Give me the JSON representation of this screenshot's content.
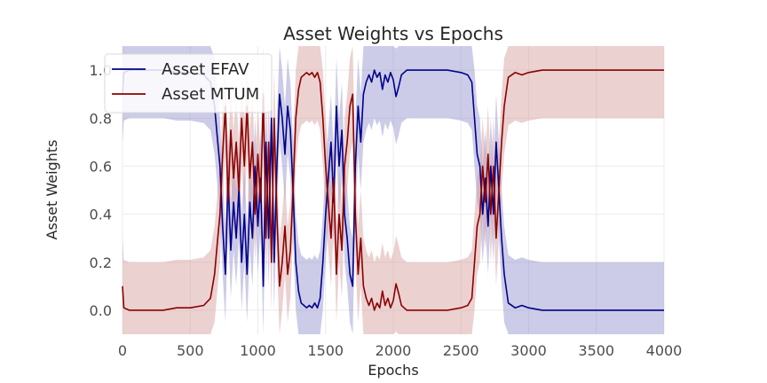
{
  "chart_data": {
    "type": "line",
    "title": "Asset Weights vs Epochs",
    "xlabel": "Epochs",
    "ylabel": "Asset Weights",
    "xlim": [
      0,
      4000
    ],
    "ylim": [
      -0.1,
      1.1
    ],
    "xticks": [
      0,
      500,
      1000,
      1500,
      2000,
      2500,
      3000,
      3500,
      4000
    ],
    "yticks": [
      0.0,
      0.2,
      0.4,
      0.6,
      0.8,
      1.0
    ],
    "grid": true,
    "legend": "top-left",
    "band_halfwidth": 0.2,
    "series": [
      {
        "name": "Asset EFAV",
        "color": "#00008b",
        "band_color": "#8e8ecc",
        "x": [
          0,
          10,
          50,
          100,
          200,
          300,
          400,
          500,
          600,
          650,
          680,
          700,
          720,
          740,
          760,
          780,
          800,
          820,
          840,
          860,
          880,
          900,
          920,
          940,
          960,
          980,
          1000,
          1020,
          1040,
          1060,
          1080,
          1100,
          1120,
          1140,
          1160,
          1180,
          1200,
          1220,
          1240,
          1260,
          1280,
          1300,
          1320,
          1340,
          1360,
          1380,
          1400,
          1420,
          1440,
          1460,
          1480,
          1500,
          1520,
          1540,
          1560,
          1580,
          1600,
          1620,
          1640,
          1660,
          1680,
          1700,
          1720,
          1740,
          1760,
          1780,
          1800,
          1820,
          1840,
          1860,
          1880,
          1900,
          1920,
          1940,
          1960,
          1980,
          2000,
          2020,
          2040,
          2060,
          2080,
          2100,
          2200,
          2300,
          2400,
          2500,
          2550,
          2580,
          2600,
          2620,
          2640,
          2660,
          2680,
          2700,
          2720,
          2740,
          2760,
          2780,
          2800,
          2820,
          2850,
          2900,
          2950,
          3000,
          3100,
          3500,
          4000
        ],
        "values": [
          0.9,
          0.99,
          1.0,
          1.0,
          1.0,
          1.0,
          0.99,
          0.99,
          0.98,
          0.95,
          0.85,
          0.72,
          0.6,
          0.35,
          0.15,
          0.55,
          0.25,
          0.45,
          0.3,
          0.5,
          0.2,
          0.4,
          0.15,
          0.45,
          0.3,
          0.6,
          0.35,
          0.55,
          0.1,
          0.7,
          0.3,
          0.8,
          0.2,
          0.6,
          0.9,
          0.8,
          0.65,
          0.85,
          0.75,
          0.5,
          0.2,
          0.08,
          0.03,
          0.02,
          0.01,
          0.02,
          0.01,
          0.03,
          0.01,
          0.05,
          0.2,
          0.4,
          0.55,
          0.7,
          0.45,
          0.85,
          0.6,
          0.75,
          0.4,
          0.3,
          0.15,
          0.1,
          0.6,
          0.85,
          0.7,
          0.9,
          0.95,
          0.98,
          0.95,
          1.0,
          0.97,
          0.99,
          0.92,
          0.98,
          0.95,
          0.99,
          0.96,
          0.89,
          0.93,
          0.98,
          0.99,
          1.0,
          1.0,
          1.0,
          1.0,
          0.99,
          0.98,
          0.95,
          0.8,
          0.65,
          0.6,
          0.4,
          0.55,
          0.35,
          0.6,
          0.4,
          0.7,
          0.5,
          0.3,
          0.15,
          0.03,
          0.01,
          0.02,
          0.01,
          0.0,
          0.0,
          0.0
        ]
      },
      {
        "name": "Asset MTUM",
        "color": "#8b0000",
        "band_color": "#d49a9a",
        "x": [
          0,
          10,
          50,
          100,
          200,
          300,
          400,
          500,
          600,
          650,
          680,
          700,
          720,
          740,
          760,
          780,
          800,
          820,
          840,
          860,
          880,
          900,
          920,
          940,
          960,
          980,
          1000,
          1020,
          1040,
          1060,
          1080,
          1100,
          1120,
          1140,
          1160,
          1180,
          1200,
          1220,
          1240,
          1260,
          1280,
          1300,
          1320,
          1340,
          1360,
          1380,
          1400,
          1420,
          1440,
          1460,
          1480,
          1500,
          1520,
          1540,
          1560,
          1580,
          1600,
          1620,
          1640,
          1660,
          1680,
          1700,
          1720,
          1740,
          1760,
          1780,
          1800,
          1820,
          1840,
          1860,
          1880,
          1900,
          1920,
          1940,
          1960,
          1980,
          2000,
          2020,
          2040,
          2060,
          2080,
          2100,
          2200,
          2300,
          2400,
          2500,
          2550,
          2580,
          2600,
          2620,
          2640,
          2660,
          2680,
          2700,
          2720,
          2740,
          2760,
          2780,
          2800,
          2820,
          2850,
          2900,
          2950,
          3000,
          3100,
          3500,
          4000
        ],
        "values": [
          0.1,
          0.01,
          0.0,
          0.0,
          0.0,
          0.0,
          0.01,
          0.01,
          0.02,
          0.05,
          0.15,
          0.28,
          0.4,
          0.65,
          0.85,
          0.45,
          0.75,
          0.55,
          0.7,
          0.5,
          0.8,
          0.6,
          0.85,
          0.55,
          0.7,
          0.4,
          0.65,
          0.45,
          0.9,
          0.3,
          0.7,
          0.2,
          0.8,
          0.4,
          0.1,
          0.2,
          0.35,
          0.15,
          0.25,
          0.5,
          0.8,
          0.92,
          0.97,
          0.98,
          0.99,
          0.98,
          0.99,
          0.97,
          0.99,
          0.95,
          0.8,
          0.6,
          0.45,
          0.3,
          0.55,
          0.15,
          0.4,
          0.25,
          0.6,
          0.7,
          0.85,
          0.9,
          0.4,
          0.15,
          0.3,
          0.1,
          0.05,
          0.02,
          0.05,
          0.0,
          0.03,
          0.01,
          0.08,
          0.02,
          0.05,
          0.01,
          0.04,
          0.11,
          0.07,
          0.02,
          0.01,
          0.0,
          0.0,
          0.0,
          0.0,
          0.01,
          0.02,
          0.05,
          0.2,
          0.35,
          0.4,
          0.6,
          0.45,
          0.65,
          0.4,
          0.6,
          0.3,
          0.5,
          0.7,
          0.85,
          0.97,
          0.99,
          0.98,
          0.99,
          1.0,
          1.0,
          1.0
        ]
      }
    ]
  }
}
